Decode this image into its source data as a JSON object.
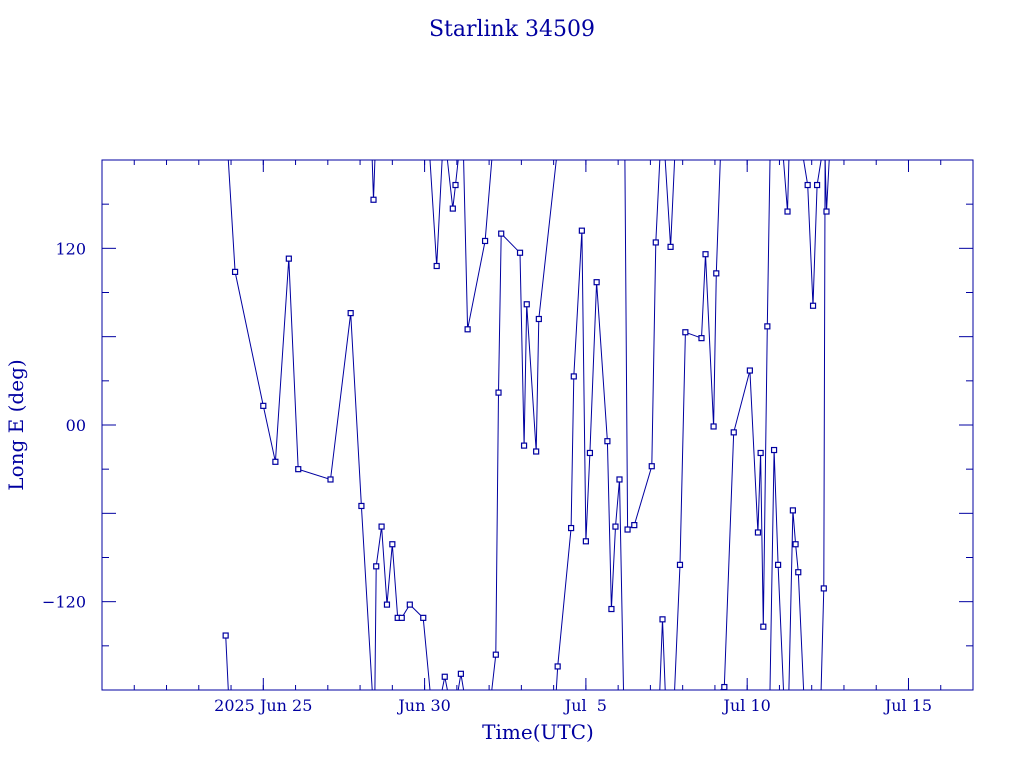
{
  "chart_data": {
    "type": "line",
    "title": "Starlink 34509",
    "xlabel": "Time(UTC)",
    "ylabel": "Long E (deg)",
    "ylim": [
      -180,
      180
    ],
    "xlim": [
      "2025-06-20T00:00",
      "2025-07-17T00:00"
    ],
    "x_ticks": [
      {
        "date": "2025-06-25",
        "label": "2025 Jun 25"
      },
      {
        "date": "2025-06-30",
        "label": "Jun 30"
      },
      {
        "date": "2025-07-05",
        "label": "Jul  5"
      },
      {
        "date": "2025-07-10",
        "label": "Jul 10"
      },
      {
        "date": "2025-07-15",
        "label": "Jul 15"
      }
    ],
    "y_ticks": [
      {
        "value": 120,
        "label": "120"
      },
      {
        "value": 0,
        "label": "00"
      },
      {
        "value": -120,
        "label": "−120"
      }
    ],
    "color": "#0000a0",
    "series": [
      {
        "values": [
          [
            "2025-06-23T20:00",
            -143
          ],
          [
            "2025-06-23T22:00",
            -180
          ]
        ]
      },
      {
        "values": [
          [
            "2025-06-23T22:00",
            180
          ],
          [
            "2025-06-24T03:00",
            104
          ],
          [
            "2025-06-25T00:00",
            13
          ],
          [
            "2025-06-25T09:00",
            -25
          ],
          [
            "2025-06-25T19:00",
            113
          ],
          [
            "2025-06-26T02:00",
            -30
          ],
          [
            "2025-06-27T02:00",
            -37
          ],
          [
            "2025-06-27T17:00",
            76
          ],
          [
            "2025-06-28T01:00",
            -55
          ],
          [
            "2025-06-28T09:00",
            -180
          ]
        ]
      },
      {
        "values": [
          [
            "2025-06-28T09:00",
            180
          ],
          [
            "2025-06-28T10:00",
            153
          ],
          [
            "2025-06-28T11:00",
            180
          ]
        ]
      },
      {
        "values": [
          [
            "2025-06-28T11:00",
            -180
          ],
          [
            "2025-06-28T12:00",
            -96
          ],
          [
            "2025-06-28T16:00",
            -69
          ],
          [
            "2025-06-28T20:00",
            -122
          ],
          [
            "2025-06-29T00:00",
            -81
          ],
          [
            "2025-06-29T04:00",
            -131
          ],
          [
            "2025-06-29T07:00",
            -131
          ],
          [
            "2025-06-29T13:00",
            -122
          ],
          [
            "2025-06-29T23:00",
            -131
          ],
          [
            "2025-06-30T04:00",
            -180
          ]
        ]
      },
      {
        "values": [
          [
            "2025-06-30T04:00",
            180
          ],
          [
            "2025-06-30T09:00",
            108
          ],
          [
            "2025-06-30T13:00",
            180
          ]
        ]
      },
      {
        "values": [
          [
            "2025-06-30T13:00",
            -180
          ],
          [
            "2025-06-30T15:00",
            -171
          ],
          [
            "2025-06-30T17:00",
            -180
          ]
        ]
      },
      {
        "values": [
          [
            "2025-06-30T17:00",
            180
          ],
          [
            "2025-06-30T21:00",
            147
          ],
          [
            "2025-06-30T23:00",
            163
          ],
          [
            "2025-07-01T01:00",
            180
          ]
        ]
      },
      {
        "values": [
          [
            "2025-07-01T01:00",
            -180
          ],
          [
            "2025-07-01T03:00",
            -169
          ],
          [
            "2025-07-01T05:00",
            -180
          ]
        ]
      },
      {
        "values": [
          [
            "2025-07-01T05:00",
            180
          ],
          [
            "2025-07-01T08:00",
            65
          ],
          [
            "2025-07-01T21:00",
            125
          ],
          [
            "2025-07-02T02:00",
            180
          ]
        ]
      },
      {
        "values": [
          [
            "2025-07-02T02:00",
            -180
          ],
          [
            "2025-07-02T05:00",
            -156
          ],
          [
            "2025-07-02T07:00",
            22
          ],
          [
            "2025-07-02T09:00",
            130
          ],
          [
            "2025-07-02T23:00",
            117
          ],
          [
            "2025-07-03T02:00",
            -14
          ],
          [
            "2025-07-03T04:00",
            82
          ],
          [
            "2025-07-03T11:00",
            -18
          ],
          [
            "2025-07-03T13:00",
            72
          ],
          [
            "2025-07-04T02:00",
            180
          ]
        ]
      },
      {
        "values": [
          [
            "2025-07-04T02:00",
            -180
          ],
          [
            "2025-07-04T03:00",
            -164
          ],
          [
            "2025-07-04T13:00",
            -70
          ],
          [
            "2025-07-04T15:00",
            33
          ],
          [
            "2025-07-04T21:00",
            132
          ],
          [
            "2025-07-05T00:00",
            -79
          ],
          [
            "2025-07-05T03:00",
            -19
          ],
          [
            "2025-07-05T08:00",
            97
          ],
          [
            "2025-07-05T16:00",
            -11
          ],
          [
            "2025-07-05T19:00",
            -125
          ],
          [
            "2025-07-05T22:00",
            -69
          ],
          [
            "2025-07-06T01:00",
            -37
          ],
          [
            "2025-07-06T04:00",
            -180
          ]
        ]
      },
      {
        "values": [
          [
            "2025-07-06T04:00",
            180
          ],
          [
            "2025-07-06T05:00",
            180
          ],
          [
            "2025-07-06T07:00",
            -71
          ],
          [
            "2025-07-06T12:00",
            -68
          ],
          [
            "2025-07-07T01:00",
            -28
          ],
          [
            "2025-07-07T04:00",
            124
          ],
          [
            "2025-07-07T07:00",
            180
          ]
        ]
      },
      {
        "values": [
          [
            "2025-07-07T07:00",
            -180
          ],
          [
            "2025-07-07T09:00",
            -132
          ],
          [
            "2025-07-07T11:00",
            -180
          ]
        ]
      },
      {
        "values": [
          [
            "2025-07-07T11:00",
            180
          ],
          [
            "2025-07-07T15:00",
            121
          ],
          [
            "2025-07-07T18:00",
            180
          ]
        ]
      },
      {
        "values": [
          [
            "2025-07-07T18:00",
            -180
          ],
          [
            "2025-07-07T22:00",
            -95
          ],
          [
            "2025-07-08T02:00",
            63
          ],
          [
            "2025-07-08T14:00",
            59
          ],
          [
            "2025-07-08T17:00",
            116
          ],
          [
            "2025-07-08T23:00",
            -1
          ],
          [
            "2025-07-09T01:00",
            103
          ],
          [
            "2025-07-09T04:00",
            180
          ]
        ]
      },
      {
        "values": [
          [
            "2025-07-09T04:00",
            -180
          ],
          [
            "2025-07-09T07:00",
            -178
          ],
          [
            "2025-07-09T14:00",
            -5
          ],
          [
            "2025-07-10T02:00",
            37
          ],
          [
            "2025-07-10T08:00",
            -73
          ],
          [
            "2025-07-10T10:00",
            -19
          ],
          [
            "2025-07-10T12:00",
            -137
          ],
          [
            "2025-07-10T15:00",
            67
          ],
          [
            "2025-07-10T17:00",
            180
          ]
        ]
      },
      {
        "values": [
          [
            "2025-07-10T17:00",
            -180
          ],
          [
            "2025-07-10T20:00",
            -17
          ],
          [
            "2025-07-10T23:00",
            -95
          ],
          [
            "2025-07-11T03:00",
            -180
          ]
        ]
      },
      {
        "values": [
          [
            "2025-07-11T03:00",
            180
          ],
          [
            "2025-07-11T06:00",
            145
          ],
          [
            "2025-07-11T07:00",
            180
          ]
        ]
      },
      {
        "values": [
          [
            "2025-07-11T07:00",
            -180
          ],
          [
            "2025-07-11T10:00",
            -58
          ],
          [
            "2025-07-11T12:00",
            -81
          ],
          [
            "2025-07-11T14:00",
            -100
          ],
          [
            "2025-07-11T18:00",
            -180
          ]
        ]
      },
      {
        "values": [
          [
            "2025-07-11T18:00",
            180
          ],
          [
            "2025-07-11T21:00",
            163
          ],
          [
            "2025-07-12T01:00",
            81
          ],
          [
            "2025-07-12T04:00",
            163
          ],
          [
            "2025-07-12T07:00",
            180
          ]
        ]
      },
      {
        "values": [
          [
            "2025-07-12T07:00",
            -180
          ],
          [
            "2025-07-12T09:00",
            -111
          ],
          [
            "2025-07-12T10:00",
            180
          ]
        ]
      },
      {
        "values": [
          [
            "2025-07-12T10:00",
            180
          ],
          [
            "2025-07-12T11:00",
            145
          ],
          [
            "2025-07-12T13:00",
            180
          ]
        ]
      }
    ]
  }
}
